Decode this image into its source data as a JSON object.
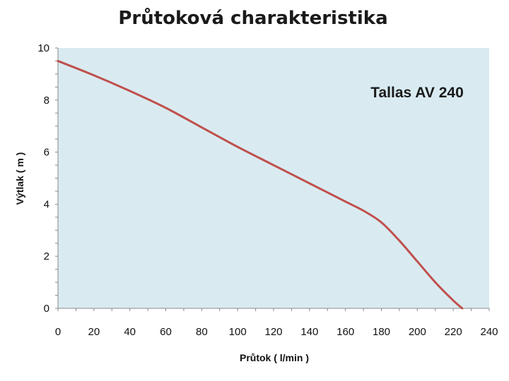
{
  "chart_data": {
    "type": "line",
    "title": "Průtoková charakteristika",
    "xlabel": "Průtok ( l/min )",
    "ylabel": "Výtlak ( m )",
    "xlim": [
      0,
      240
    ],
    "ylim": [
      0,
      10
    ],
    "x_ticks": [
      0,
      20,
      40,
      60,
      80,
      100,
      120,
      140,
      160,
      180,
      200,
      220,
      240
    ],
    "y_ticks": [
      0,
      2,
      4,
      6,
      8,
      10
    ],
    "annotation": "Tallas AV 240",
    "grid": false,
    "series": [
      {
        "color": "#c0504d",
        "x": [
          0,
          20,
          40,
          60,
          80,
          100,
          120,
          140,
          160,
          170,
          180,
          190,
          200,
          210,
          220,
          225
        ],
        "y": [
          9.5,
          8.95,
          8.35,
          7.7,
          6.95,
          6.2,
          5.5,
          4.8,
          4.1,
          3.75,
          3.3,
          2.6,
          1.8,
          1.0,
          0.3,
          0
        ]
      }
    ]
  },
  "colors": {
    "plot_background": "#d9ebf1",
    "axis": "#888888"
  }
}
